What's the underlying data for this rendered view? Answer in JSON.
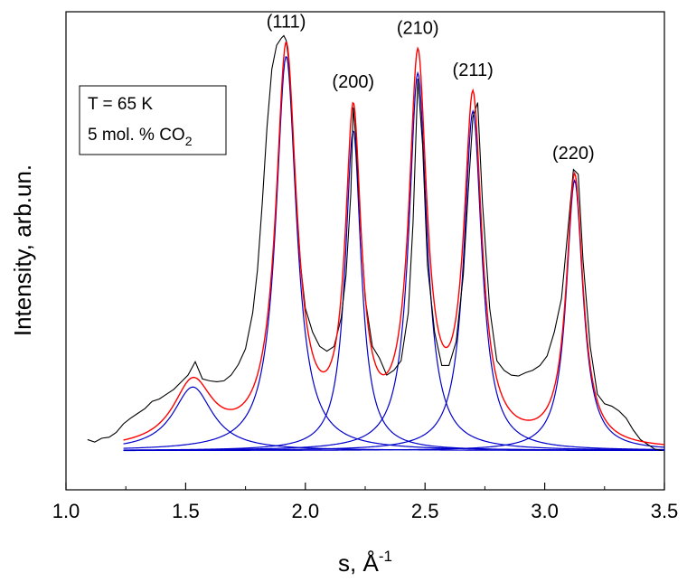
{
  "chart_data": {
    "type": "line",
    "xlabel": "s, Å",
    "xlabel_sup": "-1",
    "ylabel": "Intensity, arb.un.",
    "xlim": [
      1.0,
      3.5
    ],
    "ylim": [
      0,
      1
    ],
    "x_ticks": [
      "1.0",
      "1.5",
      "2.0",
      "2.5",
      "3.0",
      "3.5"
    ],
    "x_tick_values": [
      1.0,
      1.5,
      2.0,
      2.5,
      3.0,
      3.5
    ],
    "y_tick_labels": false,
    "grid": false,
    "annotation": {
      "line1": "T = 65 K",
      "line2_prefix": "5 mol. % CO",
      "line2_sub": "2"
    },
    "peak_labels": [
      {
        "text": "(111)",
        "x": 1.92
      },
      {
        "text": "(200)",
        "x": 2.2
      },
      {
        "text": "(210)",
        "x": 2.47
      },
      {
        "text": "(211)",
        "x": 2.7
      },
      {
        "text": "(220)",
        "x": 3.12
      }
    ],
    "baseline": 0.082,
    "components": [
      {
        "center": 1.53,
        "height": 0.133,
        "width": 0.1
      },
      {
        "center": 1.92,
        "height": 0.825,
        "width": 0.052
      },
      {
        "center": 2.2,
        "height": 0.67,
        "width": 0.04
      },
      {
        "center": 2.47,
        "height": 0.79,
        "width": 0.045
      },
      {
        "center": 2.7,
        "height": 0.71,
        "width": 0.045
      },
      {
        "center": 3.125,
        "height": 0.565,
        "width": 0.042
      }
    ],
    "fit_x_range": [
      1.24,
      3.5
    ],
    "series": [
      {
        "id": "experimental",
        "color": "#000000",
        "x": [
          1.09,
          1.12,
          1.15,
          1.18,
          1.21,
          1.24,
          1.27,
          1.3,
          1.33,
          1.36,
          1.39,
          1.42,
          1.45,
          1.48,
          1.51,
          1.54,
          1.57,
          1.6,
          1.63,
          1.66,
          1.69,
          1.72,
          1.75,
          1.78,
          1.8,
          1.82,
          1.84,
          1.86,
          1.88,
          1.9,
          1.91,
          1.92,
          1.93,
          1.94,
          1.96,
          1.98,
          2.0,
          2.03,
          2.06,
          2.09,
          2.12,
          2.15,
          2.17,
          2.19,
          2.2,
          2.21,
          2.23,
          2.25,
          2.28,
          2.31,
          2.34,
          2.37,
          2.4,
          2.43,
          2.45,
          2.47,
          2.49,
          2.51,
          2.54,
          2.57,
          2.6,
          2.63,
          2.66,
          2.68,
          2.7,
          2.72,
          2.74,
          2.77,
          2.8,
          2.83,
          2.86,
          2.89,
          2.92,
          2.95,
          2.98,
          3.01,
          3.04,
          3.07,
          3.1,
          3.12,
          3.14,
          3.16,
          3.19,
          3.22,
          3.25,
          3.28,
          3.31,
          3.34,
          3.37,
          3.4,
          3.43,
          3.46,
          3.49
        ],
        "y": [
          0.105,
          0.1,
          0.108,
          0.11,
          0.12,
          0.138,
          0.15,
          0.16,
          0.17,
          0.185,
          0.19,
          0.2,
          0.21,
          0.225,
          0.24,
          0.268,
          0.232,
          0.228,
          0.226,
          0.228,
          0.24,
          0.262,
          0.295,
          0.37,
          0.46,
          0.6,
          0.76,
          0.88,
          0.93,
          0.945,
          0.95,
          0.94,
          0.9,
          0.82,
          0.62,
          0.47,
          0.38,
          0.33,
          0.3,
          0.29,
          0.3,
          0.36,
          0.45,
          0.62,
          0.8,
          0.74,
          0.56,
          0.4,
          0.3,
          0.275,
          0.24,
          0.25,
          0.27,
          0.37,
          0.56,
          0.86,
          0.72,
          0.47,
          0.33,
          0.26,
          0.26,
          0.31,
          0.45,
          0.62,
          0.78,
          0.81,
          0.6,
          0.38,
          0.27,
          0.25,
          0.24,
          0.238,
          0.245,
          0.25,
          0.26,
          0.28,
          0.33,
          0.4,
          0.56,
          0.67,
          0.66,
          0.48,
          0.3,
          0.2,
          0.18,
          0.175,
          0.165,
          0.15,
          0.125,
          0.105,
          0.095,
          0.085,
          0.082
        ]
      },
      {
        "id": "fit-sum",
        "color": "#ff0000"
      },
      {
        "id": "component-peaks",
        "color": "#0000cc"
      }
    ]
  }
}
